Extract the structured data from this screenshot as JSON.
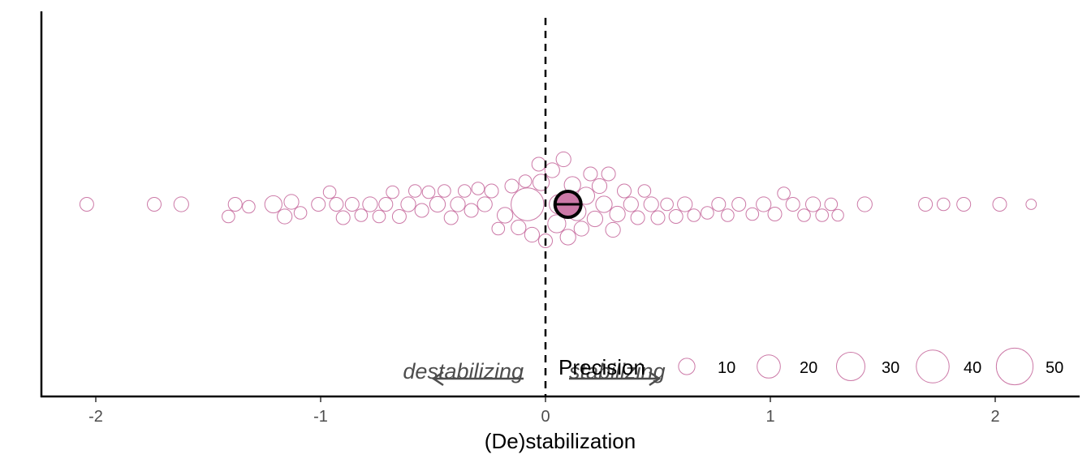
{
  "chart_data": {
    "type": "scatter",
    "subtype": "beeswarm",
    "title": "",
    "xlabel": "(De)stabilization",
    "ylabel": "",
    "xlim": [
      -2.25,
      2.35
    ],
    "xticks": [
      -2,
      -1,
      0,
      1,
      2
    ],
    "xtick_labels": [
      "-2",
      "-1",
      "0",
      "1",
      "2"
    ],
    "grid": false,
    "reference_line": {
      "x": 0,
      "style": "dashed",
      "color": "#000000"
    },
    "point_stroke_color": "#cc79a7",
    "point_fill_color": "#ffffff",
    "summary_point": {
      "x": 0.1,
      "fill": "#cc79a7",
      "stroke": "#000000",
      "shape": "circle-with-horizontal-bar"
    },
    "annotations": [
      {
        "text": "destabilizing",
        "arrow": "left",
        "color": "#4d4d4d"
      },
      {
        "text": "stabilizing",
        "arrow": "right",
        "color": "#4d4d4d"
      }
    ],
    "legend": {
      "title": "Precision",
      "position": "bottom-right",
      "entries": [
        {
          "label": "10",
          "value": 10
        },
        {
          "label": "20",
          "value": 20
        },
        {
          "label": "30",
          "value": 30
        },
        {
          "label": "40",
          "value": 40
        },
        {
          "label": "50",
          "value": 50
        }
      ]
    },
    "points": [
      {
        "x": -2.04,
        "precision": 7
      },
      {
        "x": -1.74,
        "precision": 7
      },
      {
        "x": -1.62,
        "precision": 8
      },
      {
        "x": -1.41,
        "precision": 6
      },
      {
        "x": -1.38,
        "precision": 7
      },
      {
        "x": -1.32,
        "precision": 6
      },
      {
        "x": -1.21,
        "precision": 11
      },
      {
        "x": -1.16,
        "precision": 8
      },
      {
        "x": -1.13,
        "precision": 8
      },
      {
        "x": -1.09,
        "precision": 6
      },
      {
        "x": -1.01,
        "precision": 7
      },
      {
        "x": -0.96,
        "precision": 6
      },
      {
        "x": -0.93,
        "precision": 7
      },
      {
        "x": -0.9,
        "precision": 7
      },
      {
        "x": -0.86,
        "precision": 7
      },
      {
        "x": -0.82,
        "precision": 6
      },
      {
        "x": -0.78,
        "precision": 8
      },
      {
        "x": -0.74,
        "precision": 6
      },
      {
        "x": -0.71,
        "precision": 7
      },
      {
        "x": -0.68,
        "precision": 6
      },
      {
        "x": -0.65,
        "precision": 7
      },
      {
        "x": -0.61,
        "precision": 8
      },
      {
        "x": -0.58,
        "precision": 6
      },
      {
        "x": -0.55,
        "precision": 7
      },
      {
        "x": -0.52,
        "precision": 6
      },
      {
        "x": -0.48,
        "precision": 9
      },
      {
        "x": -0.45,
        "precision": 6
      },
      {
        "x": -0.42,
        "precision": 7
      },
      {
        "x": -0.39,
        "precision": 8
      },
      {
        "x": -0.36,
        "precision": 6
      },
      {
        "x": -0.33,
        "precision": 7
      },
      {
        "x": -0.3,
        "precision": 6
      },
      {
        "x": -0.27,
        "precision": 8
      },
      {
        "x": -0.24,
        "precision": 7
      },
      {
        "x": -0.21,
        "precision": 6
      },
      {
        "x": -0.18,
        "precision": 9
      },
      {
        "x": -0.15,
        "precision": 7
      },
      {
        "x": -0.12,
        "precision": 8
      },
      {
        "x": -0.09,
        "precision": 6
      },
      {
        "x": -0.08,
        "precision": 40
      },
      {
        "x": -0.06,
        "precision": 8
      },
      {
        "x": -0.03,
        "precision": 7
      },
      {
        "x": -0.02,
        "precision": 10
      },
      {
        "x": 0.0,
        "precision": 7
      },
      {
        "x": 0.03,
        "precision": 8
      },
      {
        "x": 0.05,
        "precision": 12
      },
      {
        "x": 0.06,
        "precision": 14
      },
      {
        "x": 0.08,
        "precision": 8
      },
      {
        "x": 0.1,
        "precision": 9
      },
      {
        "x": 0.12,
        "precision": 10
      },
      {
        "x": 0.14,
        "precision": 12
      },
      {
        "x": 0.16,
        "precision": 8
      },
      {
        "x": 0.18,
        "precision": 11
      },
      {
        "x": 0.2,
        "precision": 7
      },
      {
        "x": 0.22,
        "precision": 9
      },
      {
        "x": 0.24,
        "precision": 8
      },
      {
        "x": 0.26,
        "precision": 10
      },
      {
        "x": 0.28,
        "precision": 7
      },
      {
        "x": 0.3,
        "precision": 8
      },
      {
        "x": 0.32,
        "precision": 9
      },
      {
        "x": 0.35,
        "precision": 7
      },
      {
        "x": 0.38,
        "precision": 8
      },
      {
        "x": 0.41,
        "precision": 7
      },
      {
        "x": 0.44,
        "precision": 6
      },
      {
        "x": 0.47,
        "precision": 8
      },
      {
        "x": 0.5,
        "precision": 7
      },
      {
        "x": 0.54,
        "precision": 6
      },
      {
        "x": 0.58,
        "precision": 7
      },
      {
        "x": 0.62,
        "precision": 8
      },
      {
        "x": 0.66,
        "precision": 6
      },
      {
        "x": 0.72,
        "precision": 6
      },
      {
        "x": 0.77,
        "precision": 7
      },
      {
        "x": 0.81,
        "precision": 6
      },
      {
        "x": 0.86,
        "precision": 7
      },
      {
        "x": 0.92,
        "precision": 6
      },
      {
        "x": 0.97,
        "precision": 8
      },
      {
        "x": 1.02,
        "precision": 7
      },
      {
        "x": 1.06,
        "precision": 6
      },
      {
        "x": 1.1,
        "precision": 7
      },
      {
        "x": 1.15,
        "precision": 6
      },
      {
        "x": 1.19,
        "precision": 8
      },
      {
        "x": 1.23,
        "precision": 6
      },
      {
        "x": 1.27,
        "precision": 6
      },
      {
        "x": 1.3,
        "precision": 5
      },
      {
        "x": 1.42,
        "precision": 8
      },
      {
        "x": 1.69,
        "precision": 7
      },
      {
        "x": 1.77,
        "precision": 6
      },
      {
        "x": 1.86,
        "precision": 7
      },
      {
        "x": 2.02,
        "precision": 7
      },
      {
        "x": 2.16,
        "precision": 4
      }
    ]
  }
}
